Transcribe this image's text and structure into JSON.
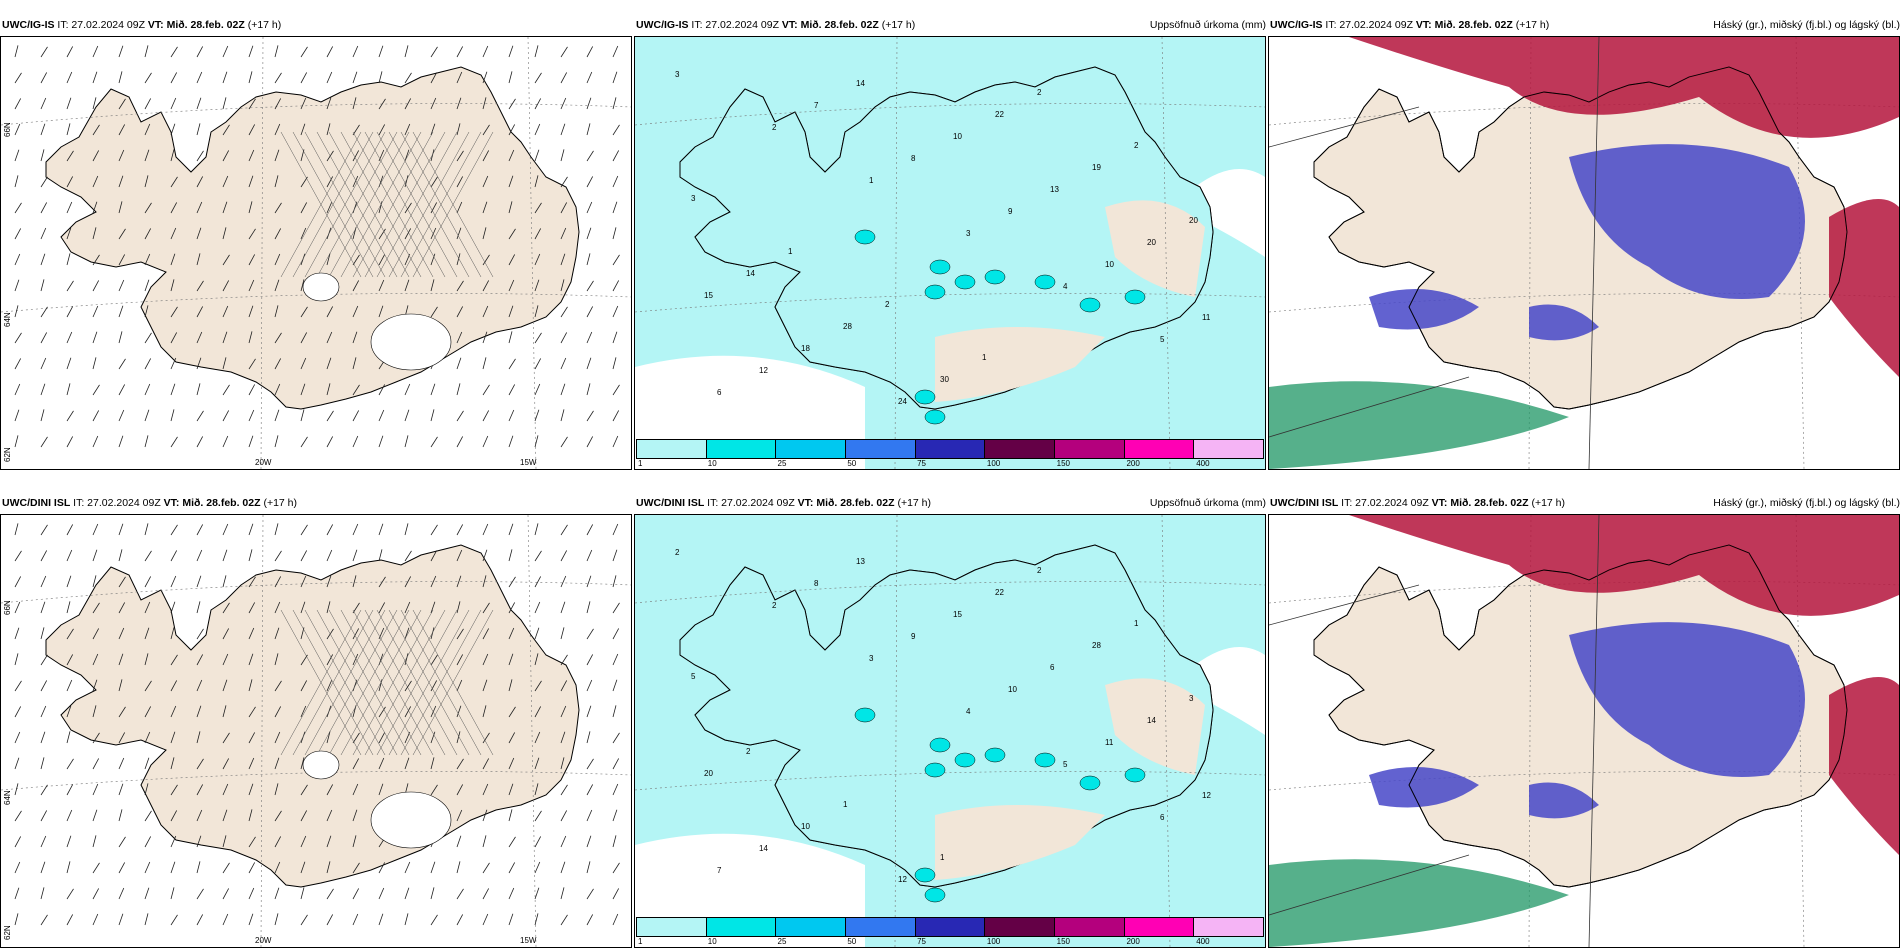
{
  "rows": [
    {
      "model": "UWC/IG-IS",
      "panels": [
        {
          "kind": "wind",
          "model": "UWC/IG-IS",
          "it": "IT: 27.02.2024 09Z",
          "vt": "VT: Mið. 28.feb. 02Z",
          "lead": "(+17 h)",
          "right_title": ""
        },
        {
          "kind": "precip",
          "model": "UWC/IG-IS",
          "it": "IT: 27.02.2024 09Z",
          "vt": "VT: Mið. 28.feb. 02Z",
          "lead": "(+17 h)",
          "right_title": "Uppsöfnuð úrkoma (mm)"
        },
        {
          "kind": "cloud",
          "model": "UWC/IG-IS",
          "it": "IT: 27.02.2024 09Z",
          "vt": "VT: Mið. 28.feb. 02Z",
          "lead": "(+17 h)",
          "right_title": "Háský (gr.), miðský (fj.bl.) og lágský (bl.)"
        }
      ],
      "precip_numbers": [
        "3",
        "2",
        "1",
        "3",
        "4",
        "5",
        "6",
        "7",
        "8",
        "9",
        "10",
        "11",
        "12",
        "14",
        "10",
        "13",
        "20",
        "15",
        "18",
        "24",
        "22",
        "19",
        "20",
        "14",
        "28",
        "30",
        "2",
        "2",
        "3",
        "1",
        "2",
        "1"
      ]
    },
    {
      "model": "UWC/DINI ISL",
      "panels": [
        {
          "kind": "wind",
          "model": "UWC/DINI ISL",
          "it": "IT: 27.02.2024 09Z",
          "vt": "VT: Mið. 28.feb. 02Z",
          "lead": "(+17 h)",
          "right_title": ""
        },
        {
          "kind": "precip",
          "model": "UWC/DINI ISL",
          "it": "IT: 27.02.2024 09Z",
          "vt": "VT: Mið. 28.feb. 02Z",
          "lead": "(+17 h)",
          "right_title": "Uppsöfnuð úrkoma (mm)"
        },
        {
          "kind": "cloud",
          "model": "UWC/DINI ISL",
          "it": "IT: 27.02.2024 09Z",
          "vt": "VT: Mið. 28.feb. 02Z",
          "lead": "(+17 h)",
          "right_title": "Háský (gr.), miðský (fj.bl.) og lágský (bl.)"
        }
      ],
      "precip_numbers": [
        "2",
        "2",
        "3",
        "4",
        "5",
        "6",
        "7",
        "8",
        "9",
        "10",
        "11",
        "12",
        "14",
        "13",
        "15",
        "6",
        "14",
        "20",
        "10",
        "12",
        "22",
        "28",
        "3",
        "2",
        "1",
        "1",
        "2",
        "1",
        "5"
      ]
    }
  ],
  "axes": {
    "lon_labels": [
      "20W",
      "15W"
    ],
    "lat_labels": [
      "66N",
      "64N",
      "62N"
    ]
  },
  "colorbar": {
    "ticks": [
      "1",
      "10",
      "25",
      "50",
      "75",
      "100",
      "150",
      "200",
      "400"
    ],
    "colors": [
      "#b4f5f5",
      "#00e6e6",
      "#00c8f0",
      "#3278f0",
      "#2828b4",
      "#640046",
      "#b4007d",
      "#ff00b4",
      "#f5b4f5"
    ]
  },
  "colors": {
    "land": "#f2e6d8",
    "precip_light": "#b4f5f5",
    "precip_mid": "#00e6e6",
    "high_cloud": "#b4143c",
    "mid_cloud": "#4646c8",
    "low_cloud": "#1e9664"
  }
}
